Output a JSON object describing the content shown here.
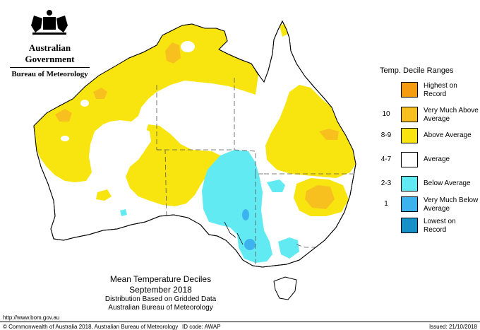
{
  "header": {
    "government": "Australian Government",
    "bureau": "Bureau of Meteorology"
  },
  "legend": {
    "title": "Temp. Decile Ranges",
    "items": [
      {
        "code": "",
        "label": "Highest on Record",
        "color": "#f59c0e"
      },
      {
        "code": "10",
        "label": "Very Much Above Average",
        "color": "#f8c01f"
      },
      {
        "code": "8-9",
        "label": "Above Average",
        "color": "#f8e50f"
      },
      {
        "code": "4-7",
        "label": "Average",
        "color": "#ffffff"
      },
      {
        "code": "2-3",
        "label": "Below Average",
        "color": "#62eaf2"
      },
      {
        "code": "1",
        "label": "Very Much Below Average",
        "color": "#3cb3ee"
      },
      {
        "code": "",
        "label": "Lowest on Record",
        "color": "#1790c9"
      }
    ]
  },
  "map": {
    "title": "Mean Temperature Deciles",
    "period": "September 2018",
    "subtitle1": "Distribution Based on Gridded Data",
    "subtitle2": "Australian Bureau of Meteorology",
    "colors": {
      "highest": "#f59c0e",
      "very_much_above": "#f8c01f",
      "above": "#f8e50f",
      "average": "#ffffff",
      "below": "#62eaf2",
      "very_much_below": "#3cb3ee",
      "lowest": "#1790c9"
    }
  },
  "footer": {
    "url": "http://www.bom.gov.au",
    "copyright": "© Commonwealth of Australia 2018, Australian Bureau of Meteorology",
    "id_code": "ID code: AWAP",
    "issued": "Issued: 21/10/2018"
  }
}
